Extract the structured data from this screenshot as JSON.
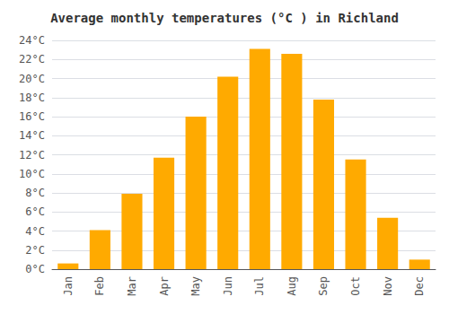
{
  "chart_data": {
    "type": "bar",
    "title": "Average monthly temperatures (°C ) in Richland",
    "categories": [
      "Jan",
      "Feb",
      "Mar",
      "Apr",
      "May",
      "Jun",
      "Jul",
      "Aug",
      "Sep",
      "Oct",
      "Nov",
      "Dec"
    ],
    "values": [
      0.6,
      4.1,
      7.9,
      11.7,
      16.0,
      20.2,
      23.1,
      22.6,
      17.8,
      11.5,
      5.4,
      1.0
    ],
    "color": "#FFAA00",
    "ylim": [
      0,
      24
    ],
    "yticks": [
      {
        "value": 0,
        "label": "0°C"
      },
      {
        "value": 2,
        "label": "2°C"
      },
      {
        "value": 4,
        "label": "4°C"
      },
      {
        "value": 6,
        "label": "6°C"
      },
      {
        "value": 8,
        "label": "8°C"
      },
      {
        "value": 10,
        "label": "10°C"
      },
      {
        "value": 12,
        "label": "12°C"
      },
      {
        "value": 14,
        "label": "14°C"
      },
      {
        "value": 16,
        "label": "16°C"
      },
      {
        "value": 18,
        "label": "18°C"
      },
      {
        "value": 20,
        "label": "20°C"
      },
      {
        "value": 22,
        "label": "22°C"
      },
      {
        "value": 24,
        "label": "24°C"
      }
    ],
    "grid": true
  }
}
